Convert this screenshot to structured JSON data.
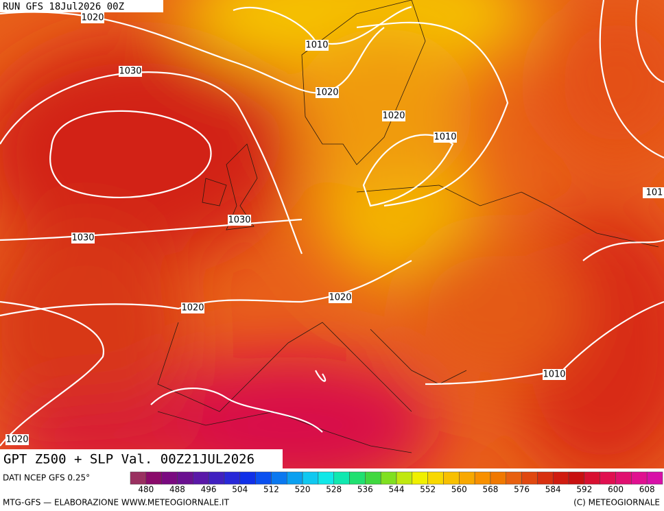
{
  "header": {
    "run": "RUN GFS 18Jul2026 00Z"
  },
  "isobar_labels": [
    "1020",
    "1010",
    "1030",
    "1020",
    "1020",
    "1010",
    "101",
    "1030",
    "1030",
    "1020",
    "1020",
    "1010",
    "1020"
  ],
  "title": "GPT Z500 + SLP Val. 00Z21JUL2026",
  "source": "DATI NCEP GFS 0.25°",
  "colorbar": {
    "colors": [
      "#9a3060",
      "#8a0a6a",
      "#7a0a80",
      "#6a1090",
      "#5a18a8",
      "#4020c0",
      "#2828d8",
      "#1030e8",
      "#0a50f0",
      "#0a78f0",
      "#0aa0f0",
      "#10c8f0",
      "#10e8e8",
      "#10e8b0",
      "#20e070",
      "#40d840",
      "#80e020",
      "#c0e810",
      "#f0f000",
      "#f8d800",
      "#f8c000",
      "#f8a800",
      "#f89000",
      "#f07800",
      "#e86010",
      "#e04810",
      "#d83010",
      "#d01c10",
      "#c81010",
      "#d81030",
      "#e01050",
      "#e01070",
      "#e01090",
      "#d810a8"
    ],
    "labels": [
      "480",
      "488",
      "496",
      "504",
      "512",
      "520",
      "528",
      "536",
      "544",
      "552",
      "560",
      "568",
      "576",
      "584",
      "592",
      "600",
      "608"
    ]
  },
  "footer": {
    "left": "MTG-GFS — ELABORAZIONE WWW.METEOGIORNALE.IT",
    "right": "(C) METEOGIORNALE"
  }
}
